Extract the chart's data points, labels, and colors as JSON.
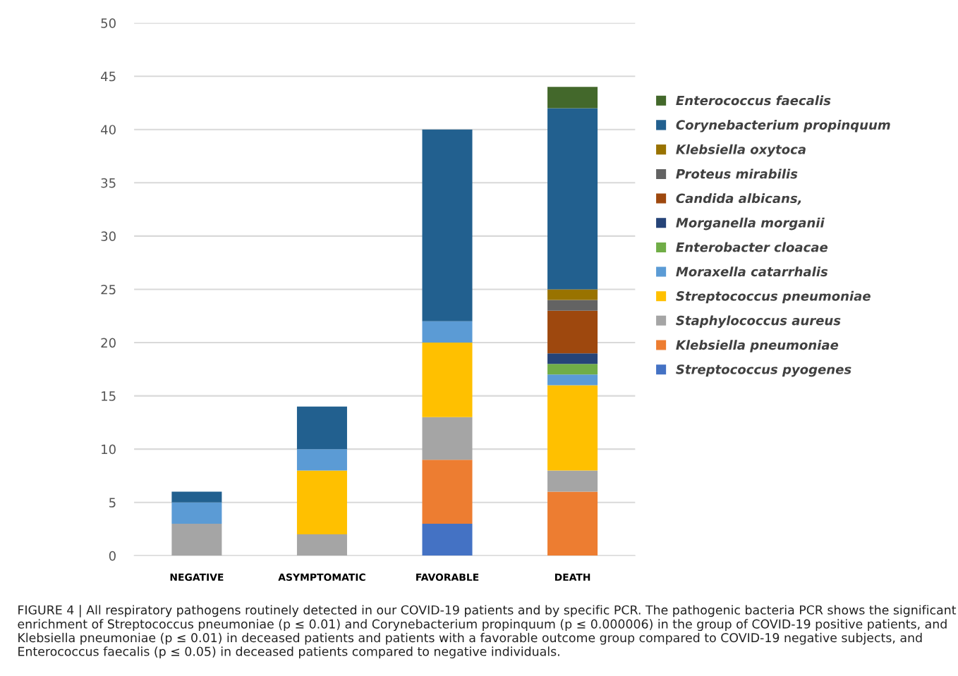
{
  "chart_data": {
    "type": "bar",
    "stacked": true,
    "categories": [
      "NEGATIVE",
      "ASYMPTOMATIC",
      "FAVORABLE",
      "DEATH"
    ],
    "series": [
      {
        "name": "Streptococcus pyogenes",
        "color": "#4472c4",
        "values": [
          0,
          0,
          3,
          0
        ]
      },
      {
        "name": "Klebsiella pneumoniae",
        "color": "#ed7d31",
        "values": [
          0,
          0,
          6,
          6
        ]
      },
      {
        "name": "Staphylococcus aureus",
        "color": "#a5a5a5",
        "values": [
          3,
          2,
          4,
          2
        ]
      },
      {
        "name": "Streptococcus pneumoniae",
        "color": "#ffc000",
        "values": [
          0,
          6,
          7,
          8
        ]
      },
      {
        "name": "Moraxella catarrhalis",
        "color": "#5b9bd5",
        "values": [
          2,
          2,
          2,
          1
        ]
      },
      {
        "name": "Enterobacter cloacae",
        "color": "#70ad47",
        "values": [
          0,
          0,
          0,
          1
        ]
      },
      {
        "name": "Morganella morganii",
        "color": "#264478",
        "values": [
          0,
          0,
          0,
          1
        ]
      },
      {
        "name": "Candida albicans,",
        "color": "#9e480e",
        "values": [
          0,
          0,
          0,
          4
        ]
      },
      {
        "name": "Proteus mirabilis",
        "color": "#636363",
        "values": [
          0,
          0,
          0,
          1
        ]
      },
      {
        "name": "Klebsiella oxytoca",
        "color": "#997300",
        "values": [
          0,
          0,
          0,
          1
        ]
      },
      {
        "name": "Corynebacterium propinquum",
        "color": "#22608f",
        "values": [
          1,
          4,
          18,
          17
        ]
      },
      {
        "name": "Enterococcus faecalis",
        "color": "#43682b",
        "values": [
          0,
          0,
          0,
          2
        ]
      }
    ],
    "ylim": [
      0,
      50
    ],
    "yticks": [
      0,
      5,
      10,
      15,
      20,
      25,
      30,
      35,
      40,
      45,
      50
    ],
    "grid": "y",
    "legend": "right",
    "annotations": [
      "FIGURE 4 | All respiratory pathogens routinely detected in our COVID-19 patients and by specific PCR. The pathogenic bacteria PCR shows the significant enrichment of Streptococcus pneumoniae (p ≤ 0.01) and Corynebacterium propinquum (p ≤ 0.000006) in the group of COVID-19 positive patients, and Klebsiella pneumoniae (p ≤ 0.01) in deceased patients and patients with a favorable outcome group compared to COVID-19 negative subjects, and Enterococcus faecalis (p ≤ 0.05) in deceased patients compared to negative individuals."
    ]
  }
}
